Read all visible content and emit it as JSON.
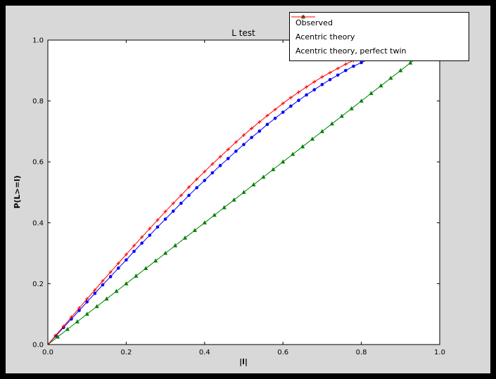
{
  "colors": {
    "frame": "#000000",
    "figure_bg": "#d8d8d8",
    "axes_bg": "#ffffff",
    "spine": "#000000",
    "tick": "#000000"
  },
  "chart_data": {
    "type": "line",
    "title": "L test",
    "xlabel": "|l|",
    "ylabel": "P(L>=l)",
    "xlim": [
      0,
      1
    ],
    "ylim": [
      0,
      1
    ],
    "grid": false,
    "legend_position": "upper right, overlapping top of axes",
    "xticks": [
      "0.0",
      "0.2",
      "0.4",
      "0.6",
      "0.8",
      "1.0"
    ],
    "yticks": [
      "0.0",
      "0.2",
      "0.4",
      "0.6",
      "0.8",
      "1.0"
    ],
    "series": [
      {
        "name": "Observed",
        "color": "#0000ff",
        "marker": "circle",
        "x": [
          0,
          0.02,
          0.04,
          0.06,
          0.08,
          0.1,
          0.12,
          0.14,
          0.16,
          0.18,
          0.2,
          0.22,
          0.24,
          0.26,
          0.28,
          0.3,
          0.32,
          0.34,
          0.36,
          0.38,
          0.4,
          0.42,
          0.44,
          0.46,
          0.48,
          0.5,
          0.52,
          0.54,
          0.56,
          0.58,
          0.6,
          0.62,
          0.64,
          0.66,
          0.68,
          0.7,
          0.72,
          0.74,
          0.76,
          0.78,
          0.8,
          0.82,
          0.84,
          0.86
        ],
        "y": [
          0,
          0.028,
          0.056,
          0.084,
          0.112,
          0.14,
          0.168,
          0.196,
          0.223,
          0.251,
          0.278,
          0.306,
          0.333,
          0.359,
          0.386,
          0.412,
          0.438,
          0.464,
          0.49,
          0.515,
          0.539,
          0.564,
          0.588,
          0.611,
          0.635,
          0.657,
          0.68,
          0.701,
          0.723,
          0.743,
          0.763,
          0.783,
          0.802,
          0.82,
          0.837,
          0.854,
          0.87,
          0.885,
          0.9,
          0.914,
          0.926,
          0.938,
          0.949,
          0.959
        ]
      },
      {
        "name": "Acentric theory",
        "color": "#008000",
        "marker": "triangle",
        "x": [
          0,
          0.025,
          0.05,
          0.075,
          0.1,
          0.125,
          0.15,
          0.175,
          0.2,
          0.225,
          0.25,
          0.275,
          0.3,
          0.325,
          0.35,
          0.375,
          0.4,
          0.425,
          0.45,
          0.475,
          0.5,
          0.525,
          0.55,
          0.575,
          0.6,
          0.625,
          0.65,
          0.675,
          0.7,
          0.725,
          0.75,
          0.775,
          0.8,
          0.825,
          0.85,
          0.875,
          0.9,
          0.925,
          0.95,
          0.975
        ],
        "y": [
          0,
          0.025,
          0.05,
          0.075,
          0.1,
          0.125,
          0.15,
          0.175,
          0.2,
          0.225,
          0.25,
          0.275,
          0.3,
          0.325,
          0.35,
          0.375,
          0.4,
          0.425,
          0.45,
          0.475,
          0.5,
          0.525,
          0.55,
          0.575,
          0.6,
          0.625,
          0.65,
          0.675,
          0.7,
          0.725,
          0.75,
          0.775,
          0.8,
          0.825,
          0.85,
          0.875,
          0.9,
          0.925,
          0.95,
          0.975
        ]
      },
      {
        "name": "Acentric theory, perfect twin",
        "color": "#ff0000",
        "marker": "plus",
        "x": [
          0,
          0.02,
          0.04,
          0.06,
          0.08,
          0.1,
          0.12,
          0.14,
          0.16,
          0.18,
          0.2,
          0.22,
          0.24,
          0.26,
          0.28,
          0.3,
          0.32,
          0.34,
          0.36,
          0.38,
          0.4,
          0.42,
          0.44,
          0.46,
          0.48,
          0.5,
          0.52,
          0.54,
          0.56,
          0.58,
          0.6,
          0.62,
          0.64,
          0.66,
          0.68,
          0.7,
          0.72,
          0.74,
          0.76,
          0.78,
          0.8,
          0.82,
          0.84,
          0.86,
          0.88,
          0.9,
          0.92
        ],
        "y": [
          0,
          0.03,
          0.06,
          0.09,
          0.12,
          0.15,
          0.179,
          0.209,
          0.238,
          0.267,
          0.296,
          0.325,
          0.353,
          0.381,
          0.409,
          0.437,
          0.464,
          0.49,
          0.517,
          0.543,
          0.568,
          0.593,
          0.617,
          0.641,
          0.665,
          0.688,
          0.71,
          0.731,
          0.752,
          0.772,
          0.792,
          0.811,
          0.829,
          0.846,
          0.863,
          0.879,
          0.893,
          0.907,
          0.921,
          0.933,
          0.944,
          0.954,
          0.964,
          0.972,
          0.979,
          0.986,
          0.991
        ]
      }
    ]
  }
}
